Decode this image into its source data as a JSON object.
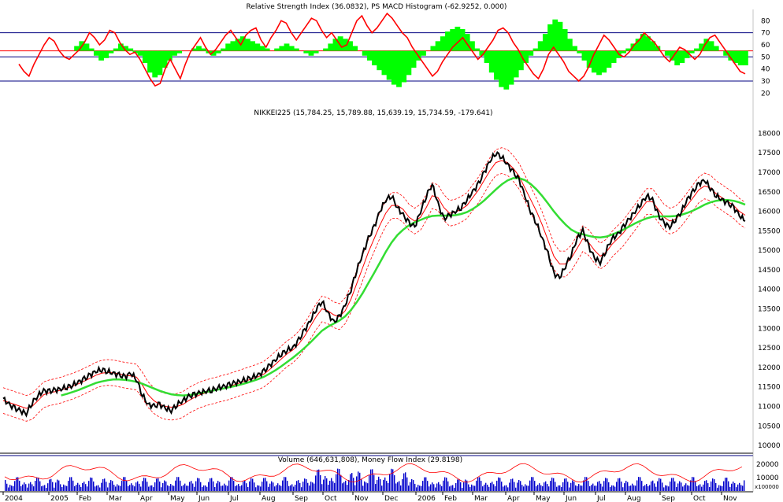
{
  "chart_data": [
    {
      "type": "line",
      "title": "Relative Strength Index (36.0832), PS MACD Histogram (-62.9252, 0.000)",
      "yticks": [
        20,
        30,
        40,
        50,
        60,
        70,
        80
      ],
      "ylim": [
        15,
        88
      ],
      "reference_lines": [
        30,
        50,
        55,
        70
      ],
      "series": [
        {
          "color": "#ff0000",
          "values": [
            44,
            38,
            34,
            44,
            52,
            60,
            66,
            63,
            55,
            50,
            48,
            52,
            56,
            62,
            70,
            66,
            60,
            64,
            72,
            70,
            62,
            56,
            52,
            54,
            48,
            40,
            32,
            26,
            28,
            40,
            48,
            40,
            32,
            44,
            54,
            60,
            66,
            58,
            52,
            56,
            62,
            68,
            72,
            66,
            60,
            68,
            72,
            74,
            64,
            58,
            66,
            72,
            80,
            78,
            70,
            64,
            70,
            76,
            82,
            80,
            72,
            66,
            70,
            64,
            58,
            60,
            70,
            80,
            84,
            76,
            70,
            74,
            80,
            86,
            82,
            76,
            70,
            66,
            58,
            52,
            46,
            40,
            34,
            38,
            46,
            52,
            58,
            62,
            66,
            60,
            54,
            48,
            52,
            58,
            64,
            72,
            74,
            70,
            62,
            56,
            48,
            42,
            36,
            32,
            40,
            52,
            58,
            52,
            46,
            38,
            34,
            30,
            34,
            42,
            52,
            60,
            68,
            64,
            58,
            52,
            50,
            54,
            60,
            64,
            70,
            66,
            62,
            56,
            50,
            46,
            52,
            58,
            56,
            52,
            48,
            52,
            60,
            66,
            68,
            62,
            56,
            50,
            44,
            38,
            36
          ]
        },
        {
          "color": "#00ff00",
          "values": [
            0,
            0,
            0,
            0,
            0,
            0,
            0,
            0,
            0,
            0,
            0,
            0,
            0,
            0,
            0,
            0,
            0,
            0,
            0,
            0,
            0,
            0,
            0,
            0,
            0,
            0,
            0,
            0,
            0,
            0,
            0,
            0,
            0,
            0,
            0,
            0,
            0,
            0,
            0,
            0,
            0,
            0,
            0,
            0,
            0,
            0,
            0,
            0,
            0,
            0,
            0,
            0,
            0,
            0,
            0,
            0,
            0,
            0,
            0,
            0,
            0,
            0,
            0,
            0,
            0,
            0,
            0,
            0,
            0,
            0,
            0,
            0,
            0,
            0,
            0,
            0,
            0,
            0,
            0,
            0,
            0,
            0,
            0,
            0,
            0,
            0,
            0,
            0,
            0,
            0,
            0,
            0,
            0,
            0,
            0,
            0,
            0,
            0,
            0,
            0,
            0,
            0,
            0,
            0,
            0,
            0,
            0,
            0,
            0,
            0,
            0,
            0,
            0,
            0,
            0,
            0,
            0,
            0,
            0,
            0,
            0,
            0,
            0,
            0,
            0,
            0,
            0,
            0,
            0,
            0,
            0,
            0,
            0,
            0,
            0,
            0,
            0,
            0,
            0,
            0,
            0,
            0,
            0,
            0,
            0
          ]
        }
      ],
      "histogram": [
        0,
        0,
        0,
        0,
        0,
        0,
        4,
        8,
        6,
        2,
        -4,
        -8,
        -6,
        -2,
        2,
        6,
        4,
        2,
        -2,
        -4,
        -10,
        -18,
        -22,
        -20,
        -14,
        -8,
        -4,
        -2,
        0,
        0,
        2,
        4,
        2,
        -2,
        -4,
        -2,
        2,
        6,
        8,
        10,
        12,
        10,
        8,
        6,
        4,
        2,
        0,
        2,
        4,
        6,
        4,
        2,
        0,
        -2,
        -4,
        -2,
        0,
        2,
        6,
        10,
        12,
        10,
        8,
        4,
        0,
        -4,
        -8,
        -12,
        -16,
        -20,
        -24,
        -28,
        -30,
        -26,
        -20,
        -14,
        -8,
        -4,
        0,
        4,
        8,
        12,
        16,
        18,
        20,
        18,
        14,
        8,
        2,
        -4,
        -10,
        -18,
        -24,
        -30,
        -32,
        -28,
        -22,
        -16,
        -10,
        -4,
        2,
        8,
        14,
        22,
        26,
        24,
        18,
        10,
        4,
        -2,
        -8,
        -14,
        -18,
        -20,
        -18,
        -14,
        -10,
        -6,
        -2,
        2,
        6,
        10,
        14,
        12,
        8,
        4,
        0,
        -4,
        -8,
        -12,
        -10,
        -6,
        -2,
        2,
        6,
        10,
        8,
        4,
        0,
        -4,
        -8,
        -10,
        -12,
        -12
      ]
    },
    {
      "type": "line",
      "title": "NIKKEI225 (15,784.25, 15,789.88, 15,639.19, 15,734.59, -179.641)",
      "yticks": [
        10000,
        10500,
        11000,
        11500,
        12000,
        12500,
        13000,
        13500,
        14000,
        14500,
        15000,
        15500,
        16000,
        16500,
        17000,
        17500,
        18000
      ],
      "ylim": [
        9800,
        18250
      ],
      "x_labels": [
        "2004",
        "2005",
        "Feb",
        "Mar",
        "Apr",
        "May",
        "Jun",
        "Jul",
        "Aug",
        "Sep",
        "Oct",
        "Nov",
        "Dec",
        "2006",
        "Feb",
        "Mar",
        "Apr",
        "May",
        "Jun",
        "Jul",
        "Aug",
        "Sep",
        "Oct",
        "Nov"
      ],
      "series": [
        {
          "name": "close",
          "color": "#000000",
          "values": [
            11200,
            11050,
            10950,
            10880,
            10820,
            11100,
            11280,
            11400,
            11380,
            11420,
            11450,
            11500,
            11550,
            11620,
            11700,
            11800,
            11900,
            11950,
            11900,
            11850,
            11800,
            11750,
            11850,
            11700,
            11300,
            11050,
            11000,
            11050,
            10950,
            10900,
            11050,
            11150,
            11250,
            11300,
            11350,
            11400,
            11420,
            11480,
            11500,
            11550,
            11600,
            11650,
            11700,
            11750,
            11800,
            11900,
            12050,
            12200,
            12350,
            12450,
            12500,
            12700,
            12950,
            13200,
            13500,
            13700,
            13400,
            13150,
            13300,
            13600,
            14000,
            14500,
            14900,
            15300,
            15600,
            16000,
            16300,
            16400,
            16100,
            15900,
            15700,
            15600,
            16000,
            16400,
            16700,
            16200,
            15800,
            15900,
            16000,
            16100,
            16300,
            16500,
            16700,
            17000,
            17300,
            17500,
            17400,
            17200,
            17000,
            16800,
            16400,
            16000,
            15700,
            15300,
            14900,
            14400,
            14300,
            14600,
            14900,
            15300,
            15500,
            15100,
            14800,
            14700,
            15000,
            15300,
            15400,
            15600,
            15800,
            16000,
            16200,
            16400,
            16300,
            15900,
            15700,
            15600,
            15800,
            16000,
            16300,
            16500,
            16700,
            16800,
            16600,
            16400,
            16300,
            16200,
            16100,
            15900,
            15750
          ]
        },
        {
          "name": "ma-fast",
          "color": "#ff0000",
          "values": [
            11150,
            11100,
            11050,
            11000,
            10950,
            11000,
            11150,
            11300,
            11350,
            11380,
            11420,
            11470,
            11520,
            11580,
            11650,
            11720,
            11800,
            11850,
            11870,
            11860,
            11830,
            11800,
            11780,
            11750,
            11550,
            11300,
            11150,
            11050,
            11000,
            10980,
            11000,
            11050,
            11150,
            11230,
            11300,
            11350,
            11390,
            11430,
            11470,
            11510,
            11560,
            11610,
            11660,
            11710,
            11760,
            11830,
            11950,
            12080,
            12220,
            12350,
            12450,
            12600,
            12800,
            13050,
            13300,
            13500,
            13450,
            13350,
            13300,
            13450,
            13750,
            14150,
            14550,
            14950,
            15300,
            15650,
            15950,
            16150,
            16150,
            16050,
            15850,
            15750,
            15850,
            16100,
            16400,
            16350,
            16100,
            15950,
            15980,
            16050,
            16150,
            16350,
            16550,
            16800,
            17050,
            17250,
            17300,
            17250,
            17100,
            16900,
            16600,
            16300,
            16000,
            15650,
            15250,
            14850,
            14650,
            14650,
            14800,
            15050,
            15300,
            15200,
            15000,
            14850,
            14950,
            15150,
            15300,
            15450,
            15650,
            15850,
            16050,
            16250,
            16250,
            16050,
            15850,
            15750,
            15800,
            15950,
            16150,
            16350,
            16550,
            16650,
            16600,
            16450,
            16350,
            16250,
            16150,
            16000,
            15900
          ]
        },
        {
          "name": "ma-slow",
          "color": "#33dd33",
          "values": [
            null,
            null,
            null,
            null,
            null,
            null,
            null,
            null,
            null,
            null,
            11280,
            11320,
            11370,
            11420,
            11480,
            11540,
            11600,
            11640,
            11670,
            11690,
            11690,
            11680,
            11660,
            11630,
            11580,
            11520,
            11460,
            11400,
            11350,
            11310,
            11290,
            11280,
            11290,
            11310,
            11340,
            11370,
            11400,
            11430,
            11460,
            11490,
            11520,
            11560,
            11600,
            11650,
            11700,
            11760,
            11840,
            11930,
            12030,
            12140,
            12250,
            12370,
            12500,
            12640,
            12790,
            12940,
            13040,
            13120,
            13200,
            13310,
            13470,
            13670,
            13900,
            14160,
            14420,
            14690,
            14960,
            15200,
            15390,
            15530,
            15640,
            15720,
            15780,
            15840,
            15880,
            15890,
            15890,
            15890,
            15900,
            15930,
            15980,
            16060,
            16160,
            16280,
            16420,
            16560,
            16690,
            16790,
            16850,
            16850,
            16800,
            16700,
            16560,
            16390,
            16200,
            16000,
            15820,
            15660,
            15530,
            15450,
            15410,
            15370,
            15340,
            15330,
            15350,
            15400,
            15460,
            15530,
            15610,
            15690,
            15760,
            15820,
            15860,
            15870,
            15870,
            15870,
            15880,
            15910,
            15960,
            16020,
            16090,
            16170,
            16230,
            16270,
            16290,
            16290,
            16270,
            16230,
            16170
          ]
        }
      ]
    },
    {
      "type": "line",
      "title": "Volume (646,631,808), Money Flow Index (29.8198)",
      "yticks": [
        10000,
        20000
      ],
      "y_unit": "x100000",
      "ylim": [
        0,
        26000
      ]
    }
  ]
}
